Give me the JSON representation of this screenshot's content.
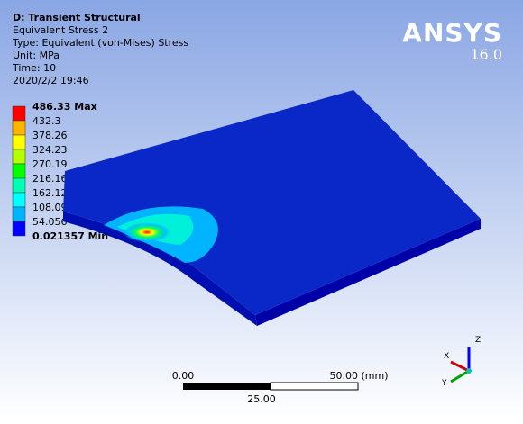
{
  "header": {
    "title": "D: Transient Structural",
    "lines": [
      "Equivalent Stress 2",
      "Type: Equivalent (von-Mises) Stress",
      "Unit: MPa",
      "Time: 10",
      "2020/2/2 19:46"
    ]
  },
  "legend": {
    "labels": [
      "486.33 Max",
      "432.3",
      "378.26",
      "324.23",
      "270.19",
      "216.16",
      "162.12",
      "108.09",
      "54.056",
      "0.021357 Min"
    ],
    "colors": [
      "#ff0000",
      "#ffb400",
      "#ffff00",
      "#b4ff00",
      "#00ff00",
      "#00ffb4",
      "#00ffff",
      "#00b4ff",
      "#0000ff"
    ]
  },
  "logo": {
    "name": "ANSYS",
    "version": "16.0"
  },
  "scale_bar": {
    "left": "0.00",
    "right": "50.00 (mm)",
    "middle": "25.00"
  },
  "triad": {
    "x": "X",
    "y": "Y",
    "z": "Z"
  }
}
